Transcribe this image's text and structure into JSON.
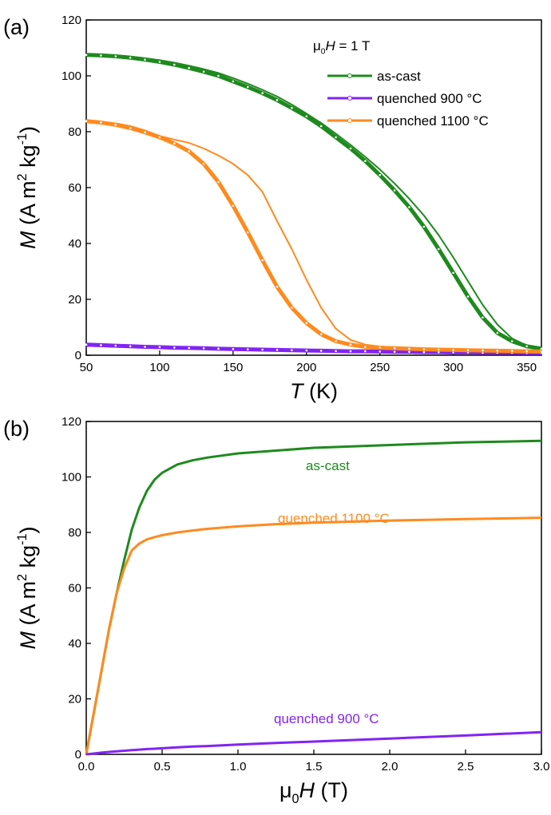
{
  "chart_data": [
    {
      "type": "line",
      "panel_label": "(a)",
      "xlabel": [
        "T",
        " (K)"
      ],
      "ylabel": [
        "M",
        " (A m",
        "2",
        " kg",
        "-1",
        ")"
      ],
      "legend_title": [
        "μ",
        "0",
        "H",
        " = 1 T"
      ],
      "markers": true,
      "x": [
        50,
        60,
        70,
        80,
        90,
        100,
        110,
        120,
        130,
        140,
        150,
        160,
        170,
        180,
        190,
        200,
        210,
        220,
        230,
        240,
        250,
        260,
        270,
        280,
        290,
        300,
        310,
        320,
        330,
        340,
        350,
        360
      ],
      "series": [
        {
          "name": "as-cast",
          "color": "#1e8a1e",
          "values": [
            107.5,
            107.3,
            107,
            106.5,
            105.8,
            105,
            104,
            102.8,
            101.5,
            100,
            98,
            96,
            93.8,
            91.3,
            88.5,
            85.5,
            82,
            78,
            74,
            69.5,
            64.5,
            59,
            53,
            46,
            38,
            29.5,
            21,
            13.5,
            8,
            5,
            3.2,
            2.3
          ],
          "values_return": [
            107.8,
            107.6,
            107.3,
            106.9,
            106.3,
            105.6,
            104.7,
            103.6,
            102.4,
            101,
            99.2,
            97.2,
            95,
            92.6,
            89.7,
            86.5,
            83.1,
            79.3,
            75.3,
            71,
            66.5,
            61.5,
            56,
            50,
            43,
            35,
            26.5,
            18,
            11,
            6,
            3.5,
            2.4
          ]
        },
        {
          "name": "quenched 900 °C",
          "color": "#8124f5",
          "values": [
            3.8,
            3.6,
            3.4,
            3.2,
            3.0,
            2.9,
            2.7,
            2.6,
            2.5,
            2.3,
            2.2,
            2.1,
            2.0,
            1.9,
            1.8,
            1.7,
            1.6,
            1.5,
            1.4,
            1.4,
            1.3,
            1.2,
            1.2,
            1.1,
            1.1,
            1.0,
            1.0,
            0.9,
            0.9,
            0.9,
            0.8,
            0.8
          ],
          "values_return": [
            3.3,
            3.2,
            3.0,
            2.9,
            2.8,
            2.7,
            2.6,
            2.5,
            2.4,
            2.3,
            2.2,
            2.1,
            2.0,
            1.9,
            1.8,
            1.7,
            1.6,
            1.5,
            1.4,
            1.4,
            1.3,
            1.2,
            1.2,
            1.1,
            1.1,
            1.0,
            1.0,
            0.9,
            0.9,
            0.9,
            0.8,
            0.8
          ]
        },
        {
          "name": "quenched 1100 °C",
          "color": "#ff8a1e",
          "values": [
            83.8,
            83.3,
            82.5,
            81.3,
            79.8,
            78,
            75.8,
            73,
            68.5,
            62,
            53.5,
            44,
            34,
            24.5,
            17,
            11.5,
            7.5,
            5,
            3.8,
            3.0,
            2.7,
            2.5,
            2.3,
            2.1,
            2.0,
            1.9,
            1.8,
            1.7,
            1.6,
            1.5,
            1.4,
            1.3
          ],
          "values_return": [
            84,
            83.6,
            83,
            82,
            80.5,
            78.5,
            77.2,
            76,
            74,
            71.5,
            68.5,
            64.5,
            58.5,
            48,
            38,
            27,
            17,
            9.5,
            5.5,
            3.8,
            3.1,
            2.8,
            2.5,
            2.3,
            2.1,
            2.0,
            1.9,
            1.8,
            1.7,
            1.5,
            1.4,
            1.3
          ]
        }
      ],
      "xlim": [
        50,
        360
      ],
      "ylim": [
        0,
        120
      ],
      "xticks": [
        50,
        100,
        150,
        200,
        250,
        300,
        350
      ],
      "yticks": [
        0,
        20,
        40,
        60,
        80,
        100,
        120
      ]
    },
    {
      "type": "line",
      "panel_label": "(b)",
      "xlabel": [
        "μ",
        "0",
        "H",
        " (T)"
      ],
      "ylabel": [
        "M",
        " (A m",
        "2",
        " kg",
        "-1",
        ")"
      ],
      "x": [
        0,
        0.05,
        0.1,
        0.15,
        0.2,
        0.25,
        0.3,
        0.35,
        0.4,
        0.45,
        0.5,
        0.6,
        0.7,
        0.8,
        1.0,
        1.25,
        1.5,
        2.0,
        2.5,
        3.0
      ],
      "series": [
        {
          "name": "as-cast",
          "color": "#1e8a1e",
          "values": [
            0,
            15,
            30,
            45,
            58,
            70,
            81,
            89,
            95,
            99,
            101.5,
            104.5,
            106,
            107,
            108.5,
            109.5,
            110.5,
            111.5,
            112.5,
            113
          ]
        },
        {
          "name": "quenched 1100 °C",
          "color": "#ff8a1e",
          "values": [
            0,
            15,
            30,
            45,
            58,
            67,
            73.5,
            76,
            77.5,
            78.3,
            79,
            80,
            80.7,
            81.3,
            82.2,
            83,
            83.5,
            84.3,
            84.8,
            85.3
          ]
        },
        {
          "name": "quenched 900 °C",
          "color": "#8124f5",
          "values": [
            0,
            0.3,
            0.6,
            0.85,
            1.1,
            1.3,
            1.5,
            1.7,
            1.9,
            2.0,
            2.2,
            2.5,
            2.8,
            3.0,
            3.5,
            4.1,
            4.6,
            5.7,
            6.8,
            8.0
          ]
        }
      ],
      "xlim": [
        0,
        3
      ],
      "ylim": [
        0,
        120
      ],
      "xticks": [
        {
          "value": 0,
          "label": "0.0"
        },
        0.5,
        {
          "value": 1,
          "label": "1.0"
        },
        1.5,
        {
          "value": 2,
          "label": "2.0"
        },
        2.5,
        {
          "value": 3,
          "label": "3.0"
        }
      ],
      "yticks": [
        0,
        20,
        40,
        60,
        80,
        100,
        120
      ]
    }
  ]
}
